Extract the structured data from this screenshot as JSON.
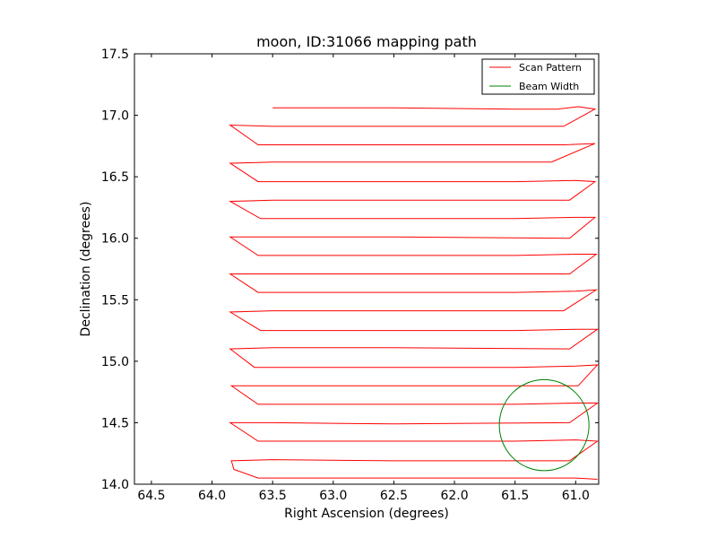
{
  "chart_data": {
    "type": "line",
    "title": "moon, ID:31066 mapping path",
    "xlabel": "Right Ascension (degrees)",
    "ylabel": "Declination (degrees)",
    "xlim": [
      64.64,
      60.81
    ],
    "ylim": [
      14.0,
      17.5
    ],
    "x_inverted": true,
    "xticks": [
      64.5,
      64.0,
      63.5,
      63.0,
      62.5,
      62.0,
      61.5,
      61.0
    ],
    "xtick_labels": [
      "64.5",
      "64.0",
      "63.5",
      "63.0",
      "62.5",
      "62.0",
      "61.5",
      "61.0"
    ],
    "yticks": [
      14.0,
      14.5,
      15.0,
      15.5,
      16.0,
      16.5,
      17.0,
      17.5
    ],
    "ytick_labels": [
      "14.0",
      "14.5",
      "15.0",
      "15.5",
      "16.0",
      "16.5",
      "17.0",
      "17.5"
    ],
    "grid": false,
    "legend": {
      "position": "top-right",
      "entries": [
        {
          "label": "Scan Pattern",
          "color": "#ff0000"
        },
        {
          "label": "Beam Width",
          "color": "#008000"
        }
      ]
    },
    "series": [
      {
        "name": "Scan Pattern",
        "color": "#ff0000",
        "points": [
          [
            63.5,
            17.06
          ],
          [
            62.5,
            17.06
          ],
          [
            61.5,
            17.05
          ],
          [
            61.15,
            17.05
          ],
          [
            60.98,
            17.07
          ],
          [
            60.84,
            17.05
          ],
          [
            61.1,
            16.91
          ],
          [
            62.0,
            16.91
          ],
          [
            63.5,
            16.91
          ],
          [
            63.85,
            16.92
          ],
          [
            63.62,
            16.76
          ],
          [
            62.5,
            16.76
          ],
          [
            61.5,
            16.76
          ],
          [
            61.1,
            16.76
          ],
          [
            60.84,
            16.77
          ],
          [
            61.2,
            16.62
          ],
          [
            62.5,
            16.62
          ],
          [
            63.5,
            16.62
          ],
          [
            63.85,
            16.61
          ],
          [
            63.62,
            16.46
          ],
          [
            62.5,
            16.46
          ],
          [
            61.5,
            16.46
          ],
          [
            61.0,
            16.47
          ],
          [
            60.84,
            16.46
          ],
          [
            61.05,
            16.31
          ],
          [
            62.5,
            16.31
          ],
          [
            63.5,
            16.31
          ],
          [
            63.85,
            16.3
          ],
          [
            63.6,
            16.16
          ],
          [
            62.5,
            16.16
          ],
          [
            61.5,
            16.16
          ],
          [
            61.0,
            16.17
          ],
          [
            60.84,
            16.17
          ],
          [
            61.05,
            16.0
          ],
          [
            62.5,
            16.01
          ],
          [
            63.5,
            16.01
          ],
          [
            63.85,
            16.01
          ],
          [
            63.62,
            15.86
          ],
          [
            62.5,
            15.86
          ],
          [
            61.5,
            15.86
          ],
          [
            61.0,
            15.87
          ],
          [
            60.83,
            15.87
          ],
          [
            61.05,
            15.71
          ],
          [
            62.5,
            15.71
          ],
          [
            63.5,
            15.71
          ],
          [
            63.85,
            15.71
          ],
          [
            63.62,
            15.56
          ],
          [
            62.5,
            15.56
          ],
          [
            61.5,
            15.56
          ],
          [
            61.0,
            15.57
          ],
          [
            60.83,
            15.58
          ],
          [
            61.1,
            15.41
          ],
          [
            62.5,
            15.41
          ],
          [
            63.5,
            15.41
          ],
          [
            63.85,
            15.4
          ],
          [
            63.6,
            15.25
          ],
          [
            62.5,
            15.25
          ],
          [
            61.5,
            15.25
          ],
          [
            61.0,
            15.26
          ],
          [
            60.82,
            15.26
          ],
          [
            61.05,
            15.1
          ],
          [
            62.5,
            15.11
          ],
          [
            63.5,
            15.11
          ],
          [
            63.85,
            15.1
          ],
          [
            63.65,
            14.95
          ],
          [
            62.5,
            14.95
          ],
          [
            61.5,
            14.95
          ],
          [
            61.0,
            14.96
          ],
          [
            60.82,
            14.97
          ],
          [
            60.98,
            14.8
          ],
          [
            62.5,
            14.8
          ],
          [
            63.5,
            14.8
          ],
          [
            63.84,
            14.8
          ],
          [
            63.62,
            14.65
          ],
          [
            62.5,
            14.65
          ],
          [
            61.5,
            14.65
          ],
          [
            61.0,
            14.66
          ],
          [
            60.82,
            14.66
          ],
          [
            61.05,
            14.5
          ],
          [
            62.5,
            14.49
          ],
          [
            63.5,
            14.5
          ],
          [
            63.85,
            14.5
          ],
          [
            63.62,
            14.35
          ],
          [
            62.5,
            14.35
          ],
          [
            61.5,
            14.35
          ],
          [
            61.0,
            14.36
          ],
          [
            60.82,
            14.35
          ],
          [
            61.05,
            14.19
          ],
          [
            62.5,
            14.19
          ],
          [
            63.5,
            14.2
          ],
          [
            63.84,
            14.19
          ],
          [
            63.82,
            14.12
          ],
          [
            63.62,
            14.05
          ],
          [
            62.5,
            14.05
          ],
          [
            61.5,
            14.05
          ],
          [
            61.0,
            14.05
          ],
          [
            60.82,
            14.04
          ]
        ]
      },
      {
        "name": "Beam Width",
        "color": "#008000",
        "shape": "circle",
        "center": [
          61.26,
          14.48
        ],
        "radius": 0.37
      }
    ]
  }
}
